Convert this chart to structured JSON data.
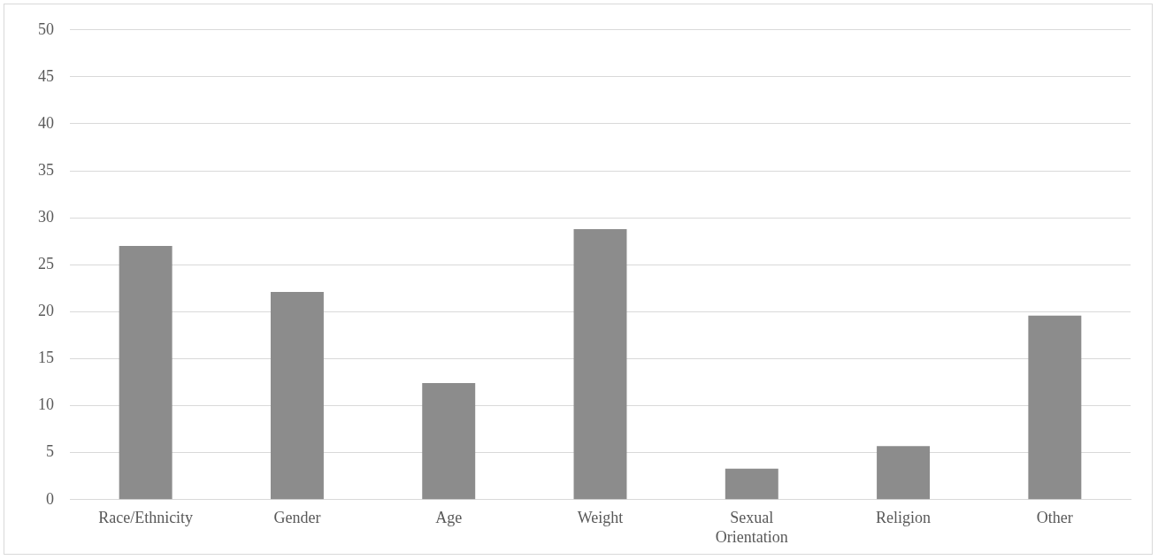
{
  "chart_data": {
    "type": "bar",
    "categories": [
      "Race/Ethnicity",
      "Gender",
      "Age",
      "Weight",
      "Sexual Orientation",
      "Religion",
      "Other"
    ],
    "values": [
      27,
      22.1,
      12.4,
      28.8,
      3.3,
      5.7,
      19.6
    ],
    "color": "#8c8c8c",
    "ylim": [
      0,
      50
    ],
    "yticks": [
      0,
      5,
      10,
      15,
      20,
      25,
      30,
      35,
      40,
      45,
      50
    ],
    "grid": "y",
    "legend": false
  }
}
